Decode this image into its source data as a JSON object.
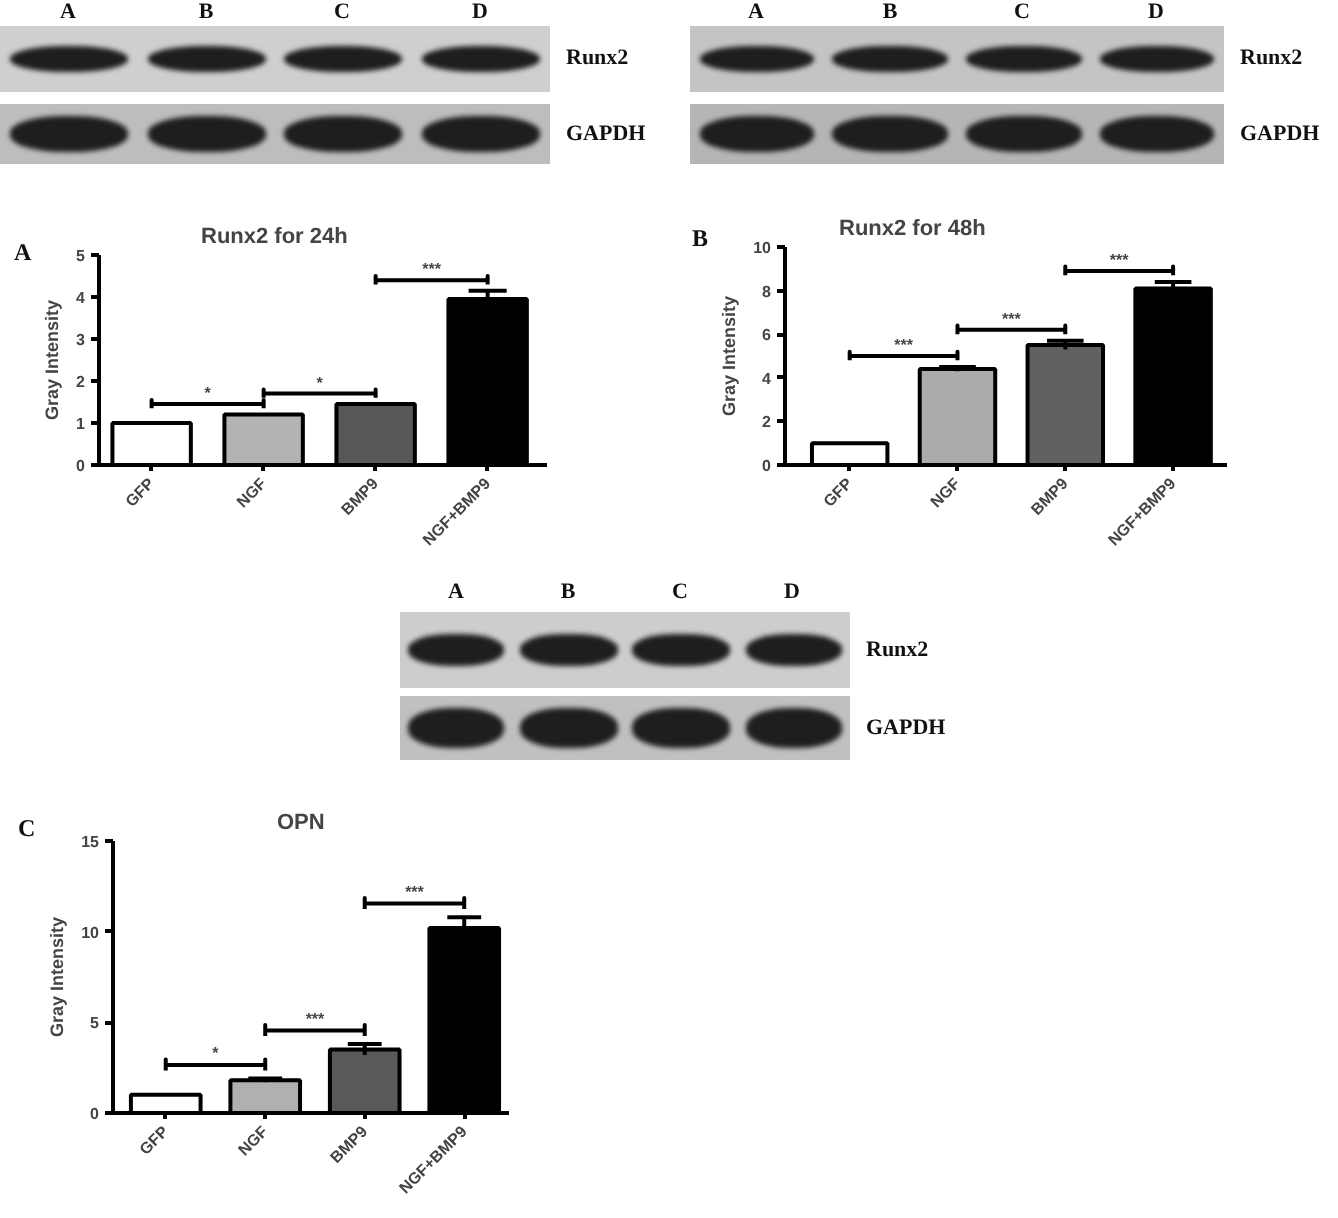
{
  "chart_data": [
    {
      "type": "other",
      "categories": [
        "A",
        "B",
        "C",
        "D"
      ],
      "annotations": [
        "Runx2",
        "GAPDH"
      ]
    },
    {
      "type": "other",
      "categories": [
        "A",
        "B",
        "C",
        "D"
      ],
      "annotations": [
        "Runx2",
        "GAPDH"
      ]
    },
    {
      "type": "bar",
      "title": "Runx2 for 24h",
      "ylabel": "Gray Intensity",
      "categories": [
        "GFP",
        "NGF",
        "BMP9",
        "NGF+BMP9"
      ],
      "values": [
        1.0,
        1.2,
        1.45,
        3.95
      ],
      "colors": [
        "#ffffff",
        "#b3b3b3",
        "#575757",
        "#000000"
      ],
      "errors": [
        null,
        null,
        null,
        0.2
      ],
      "ylim": [
        0,
        5
      ],
      "yticks": [
        0,
        1,
        2,
        3,
        4,
        5
      ],
      "annotations": [
        "A",
        "*",
        "*",
        "***"
      ]
    },
    {
      "type": "bar",
      "title": "Runx2 for 48h",
      "ylabel": "Gray Intensity",
      "categories": [
        "GFP",
        "NGF",
        "BMP9",
        "NGF+BMP9"
      ],
      "values": [
        1.0,
        4.4,
        5.5,
        8.1
      ],
      "colors": [
        "#ffffff",
        "#ababab",
        "#616161",
        "#000000"
      ],
      "errors": [
        null,
        0.1,
        0.2,
        0.3
      ],
      "ylim": [
        0,
        10
      ],
      "yticks": [
        0,
        2,
        4,
        6,
        8,
        10
      ],
      "annotations": [
        "B",
        "***",
        "***",
        "***"
      ]
    },
    {
      "type": "other",
      "categories": [
        "A",
        "B",
        "C",
        "D"
      ],
      "annotations": [
        "Runx2",
        "GAPDH"
      ]
    },
    {
      "type": "bar",
      "title": "OPN",
      "ylabel": "Gray Intensity",
      "categories": [
        "GFP",
        "NGF",
        "BMP9",
        "NGF+BMP9"
      ],
      "values": [
        1.0,
        1.8,
        3.5,
        10.2
      ],
      "colors": [
        "#ffffff",
        "#b0b0b0",
        "#595959",
        "#000000"
      ],
      "errors": [
        null,
        0.1,
        0.3,
        0.6
      ],
      "ylim": [
        0,
        15
      ],
      "yticks": [
        0,
        5,
        10,
        15
      ],
      "annotations": [
        "C",
        "*",
        "***",
        "***"
      ]
    }
  ]
}
